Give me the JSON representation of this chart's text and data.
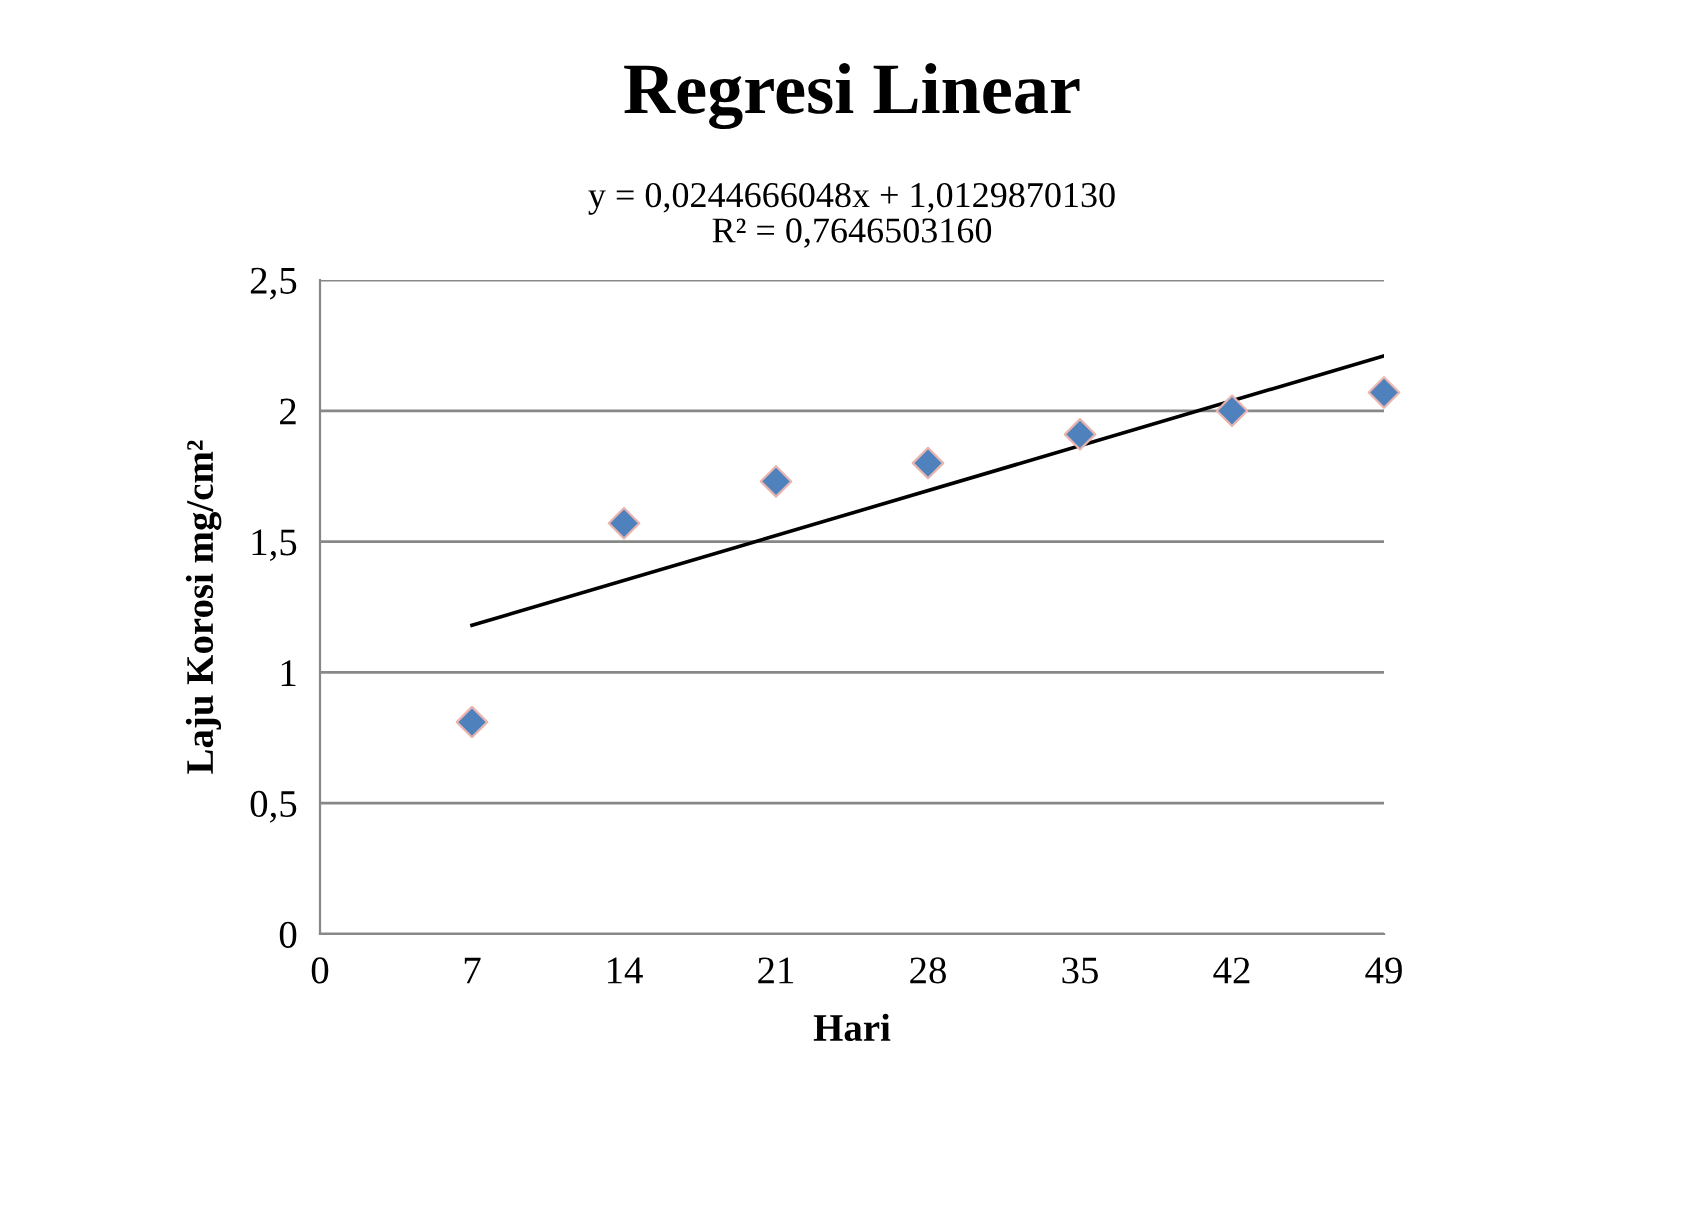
{
  "chart_data": {
    "type": "scatter",
    "title": "Regresi Linear",
    "subtitle": "y = 0,0244666048x + 1,0129870130\nR² = 0,7646503160",
    "xlabel": "Hari",
    "ylabel": "Laju Korosi mg/cm²",
    "series": [
      {
        "color": "#4f81bd",
        "x": [
          7,
          14,
          21,
          28,
          35,
          42,
          49
        ],
        "values": [
          0.81,
          1.57,
          1.73,
          1.8,
          1.91,
          2.0,
          2.07
        ],
        "marker": "diamond"
      },
      {
        "type": "line",
        "color": "#000000",
        "x": [
          7,
          49
        ],
        "values": [
          1.18,
          2.21
        ],
        "marker": "none",
        "line_style": "solid"
      }
    ],
    "xlim": [
      0,
      49
    ],
    "xticks": [
      0,
      7,
      14,
      21,
      28,
      35,
      42,
      49
    ],
    "ylim": [
      0,
      2.5
    ],
    "yticks": [
      {
        "value": 0,
        "label": "0"
      },
      {
        "value": 0.5,
        "label": "0,5"
      },
      {
        "value": 1,
        "label": "1"
      },
      {
        "value": 1.5,
        "label": "1,5"
      },
      {
        "value": 2,
        "label": "2"
      },
      {
        "value": 2.5,
        "label": "2,5"
      }
    ],
    "grid": "y",
    "legend": false
  }
}
